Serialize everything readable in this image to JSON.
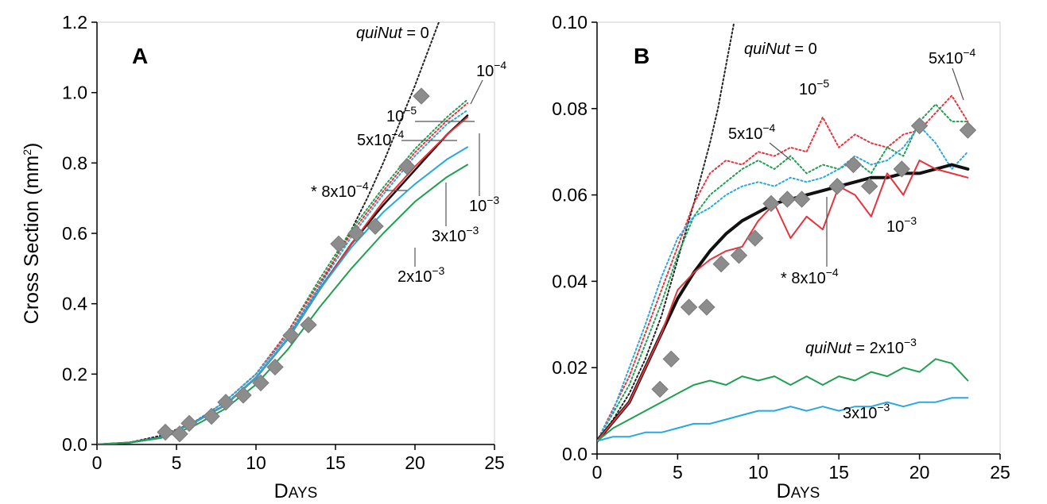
{
  "chart_data": [
    {
      "type": "line",
      "panel_label": "A",
      "xlabel": "Days",
      "ylabel": "Cross Section (mm2)",
      "xlim": [
        0,
        25
      ],
      "ylim": [
        0,
        1.2
      ],
      "xticks": [
        "0",
        "5",
        "10",
        "15",
        "20",
        "25"
      ],
      "yticks": [
        "0.0",
        "0.2",
        "0.4",
        "0.6",
        "0.8",
        "1.0",
        "1.2"
      ],
      "grid": false,
      "series": [
        {
          "name": "quiNut = 0",
          "color": "#222222",
          "style": "dotted",
          "x": [
            0,
            2,
            4,
            6,
            8,
            10,
            12,
            14,
            16,
            17,
            18,
            19,
            20,
            20.5,
            21,
            21.5,
            22
          ],
          "y": [
            0.0,
            0.005,
            0.025,
            0.06,
            0.12,
            0.2,
            0.31,
            0.45,
            0.61,
            0.7,
            0.8,
            0.91,
            1.02,
            1.08,
            1.14,
            1.2,
            1.26
          ]
        },
        {
          "name": "10-4",
          "color": "#1fa050",
          "style": "dotted",
          "x": [
            0,
            2,
            4,
            6,
            8,
            10,
            12,
            14,
            16,
            18,
            20,
            22,
            23.3
          ],
          "y": [
            0.0,
            0.005,
            0.02,
            0.06,
            0.12,
            0.2,
            0.32,
            0.47,
            0.61,
            0.73,
            0.84,
            0.93,
            0.98
          ]
        },
        {
          "name": "10-5",
          "color": "#e8323c",
          "style": "dotted",
          "x": [
            0,
            2,
            4,
            6,
            8,
            10,
            12,
            14,
            16,
            18,
            20,
            22,
            23.3
          ],
          "y": [
            0.0,
            0.005,
            0.02,
            0.06,
            0.12,
            0.2,
            0.32,
            0.46,
            0.6,
            0.72,
            0.83,
            0.92,
            0.97
          ]
        },
        {
          "name": "5x10-4",
          "color": "#29a8e0",
          "style": "dotted",
          "x": [
            0,
            2,
            4,
            6,
            8,
            10,
            12,
            14,
            16,
            18,
            20,
            22,
            23.3
          ],
          "y": [
            0.0,
            0.005,
            0.02,
            0.06,
            0.12,
            0.2,
            0.31,
            0.45,
            0.59,
            0.71,
            0.82,
            0.91,
            0.95
          ]
        },
        {
          "name": "8x10-4",
          "color": "#111111",
          "style": "solid",
          "x": [
            0,
            2,
            4,
            6,
            8,
            10,
            12,
            14,
            16,
            18,
            20,
            22,
            23.3
          ],
          "y": [
            0.0,
            0.005,
            0.02,
            0.06,
            0.11,
            0.19,
            0.3,
            0.44,
            0.57,
            0.68,
            0.78,
            0.88,
            0.935
          ]
        },
        {
          "name": "10-3",
          "color": "#e8323c",
          "style": "solid",
          "x": [
            0,
            2,
            4,
            6,
            8,
            10,
            12,
            14,
            16,
            18,
            20,
            22,
            23.3
          ],
          "y": [
            0.0,
            0.005,
            0.02,
            0.06,
            0.11,
            0.19,
            0.3,
            0.44,
            0.57,
            0.69,
            0.79,
            0.88,
            0.93
          ]
        },
        {
          "name": "3x10-3",
          "color": "#29a8e0",
          "style": "solid",
          "x": [
            0,
            2,
            4,
            6,
            8,
            10,
            12,
            14,
            16,
            18,
            20,
            22,
            23.3
          ],
          "y": [
            0.0,
            0.005,
            0.02,
            0.06,
            0.11,
            0.19,
            0.3,
            0.44,
            0.56,
            0.66,
            0.74,
            0.81,
            0.845
          ]
        },
        {
          "name": "2x10-3",
          "color": "#1fa050",
          "style": "solid",
          "x": [
            0,
            2,
            4,
            6,
            8,
            10,
            12,
            14,
            16,
            18,
            20,
            22,
            23.3
          ],
          "y": [
            0.0,
            0.005,
            0.018,
            0.05,
            0.1,
            0.17,
            0.27,
            0.39,
            0.5,
            0.6,
            0.69,
            0.76,
            0.795
          ]
        }
      ],
      "markers": {
        "shape": "diamond",
        "color": "#8c8c8c",
        "x": [
          4.3,
          5.2,
          5.8,
          7.2,
          8.1,
          9.2,
          10.3,
          11.2,
          12.2,
          13.3,
          15.2,
          16.3,
          17.5,
          19.5,
          20.4
        ],
        "y": [
          0.035,
          0.03,
          0.06,
          0.08,
          0.12,
          0.14,
          0.175,
          0.22,
          0.31,
          0.34,
          0.57,
          0.6,
          0.62,
          0.79,
          0.99
        ]
      },
      "annotations": [
        {
          "text": "quiNut = 0",
          "italic_part": "quiNut"
        },
        {
          "text": "10-4"
        },
        {
          "text": "10-5"
        },
        {
          "text": "5x10-4"
        },
        {
          "text": "* 8x10-4"
        },
        {
          "text": "10-3"
        },
        {
          "text": "3x10-3"
        },
        {
          "text": "2x10-3"
        }
      ]
    },
    {
      "type": "line",
      "panel_label": "B",
      "xlabel": "Days",
      "ylabel": "",
      "xlim": [
        0,
        25
      ],
      "ylim": [
        0,
        0.1
      ],
      "xticks": [
        "0",
        "5",
        "10",
        "15",
        "20",
        "25"
      ],
      "yticks": [
        "0.0",
        "0.02",
        "0.04",
        "0.06",
        "0.08",
        "0.10"
      ],
      "grid": false,
      "series": [
        {
          "name": "quiNut = 0",
          "color": "#222222",
          "style": "dotted",
          "x": [
            0,
            1,
            2,
            3,
            4,
            5,
            6,
            7,
            7.5,
            8,
            8.5
          ],
          "y": [
            0.003,
            0.008,
            0.014,
            0.022,
            0.032,
            0.045,
            0.058,
            0.072,
            0.08,
            0.09,
            0.1
          ]
        },
        {
          "name": "10-5",
          "color": "#e8323c",
          "style": "dotted",
          "x": [
            0,
            2,
            4,
            5,
            6,
            7,
            8,
            9,
            10,
            11,
            12,
            13,
            14,
            15,
            16,
            17,
            18,
            19,
            20,
            21,
            22,
            23
          ],
          "y": [
            0.003,
            0.018,
            0.038,
            0.048,
            0.058,
            0.065,
            0.068,
            0.067,
            0.07,
            0.069,
            0.071,
            0.07,
            0.078,
            0.071,
            0.074,
            0.072,
            0.071,
            0.074,
            0.075,
            0.079,
            0.083,
            0.077
          ]
        },
        {
          "name": "5x10-4",
          "color": "#1fa050",
          "style": "dotted",
          "x": [
            0,
            2,
            4,
            5,
            6,
            7,
            8,
            9,
            10,
            11,
            12,
            13,
            14,
            15,
            16,
            17,
            18,
            19,
            20,
            21,
            22,
            23
          ],
          "y": [
            0.003,
            0.016,
            0.035,
            0.046,
            0.055,
            0.06,
            0.063,
            0.066,
            0.068,
            0.066,
            0.069,
            0.065,
            0.067,
            0.066,
            0.068,
            0.065,
            0.071,
            0.069,
            0.077,
            0.081,
            0.077,
            0.077
          ]
        },
        {
          "name": "5x10-4",
          "color": "#29a8e0",
          "style": "dotted",
          "x": [
            0,
            1,
            2,
            3,
            4,
            5,
            6,
            7,
            8,
            9,
            10,
            11,
            12,
            13,
            14,
            15,
            16,
            17,
            18,
            19,
            20,
            21,
            22,
            23
          ],
          "y": [
            0.003,
            0.01,
            0.02,
            0.03,
            0.041,
            0.05,
            0.055,
            0.057,
            0.06,
            0.062,
            0.063,
            0.062,
            0.064,
            0.063,
            0.064,
            0.066,
            0.069,
            0.067,
            0.068,
            0.071,
            0.076,
            0.072,
            0.066,
            0.07
          ]
        },
        {
          "name": "8x10-4",
          "color": "#111111",
          "style": "solid",
          "x": [
            0,
            2,
            3,
            4,
            5,
            6,
            7,
            8,
            9,
            10,
            11,
            12,
            13,
            14,
            15,
            16,
            17,
            18,
            19,
            20,
            21,
            22,
            23
          ],
          "y": [
            0.003,
            0.012,
            0.02,
            0.028,
            0.036,
            0.042,
            0.047,
            0.051,
            0.054,
            0.056,
            0.058,
            0.059,
            0.06,
            0.061,
            0.062,
            0.063,
            0.064,
            0.064,
            0.065,
            0.065,
            0.066,
            0.067,
            0.066
          ]
        },
        {
          "name": "10-3",
          "color": "#e8323c",
          "style": "solid",
          "x": [
            0,
            2,
            3,
            4,
            5,
            6,
            7,
            8,
            9,
            10,
            11,
            12,
            13,
            14,
            15,
            16,
            17,
            18,
            19,
            20,
            21,
            22,
            23
          ],
          "y": [
            0.003,
            0.012,
            0.02,
            0.028,
            0.038,
            0.042,
            0.045,
            0.047,
            0.048,
            0.054,
            0.058,
            0.05,
            0.055,
            0.052,
            0.062,
            0.06,
            0.055,
            0.065,
            0.06,
            0.068,
            0.066,
            0.065,
            0.064
          ]
        },
        {
          "name": "quiNut = 2x10-3",
          "color": "#1fa050",
          "style": "solid",
          "x": [
            0,
            1,
            2,
            3,
            4,
            5,
            6,
            7,
            8,
            9,
            10,
            11,
            12,
            13,
            14,
            15,
            16,
            17,
            18,
            19,
            20,
            21,
            22,
            23
          ],
          "y": [
            0.003,
            0.006,
            0.008,
            0.01,
            0.012,
            0.014,
            0.016,
            0.017,
            0.016,
            0.018,
            0.017,
            0.018,
            0.016,
            0.018,
            0.016,
            0.018,
            0.017,
            0.019,
            0.018,
            0.02,
            0.019,
            0.022,
            0.021,
            0.017
          ]
        },
        {
          "name": "3x10-3",
          "color": "#29a8e0",
          "style": "solid",
          "x": [
            0,
            1,
            2,
            3,
            4,
            5,
            6,
            7,
            8,
            9,
            10,
            11,
            12,
            13,
            14,
            15,
            16,
            17,
            18,
            19,
            20,
            21,
            22,
            23
          ],
          "y": [
            0.003,
            0.004,
            0.004,
            0.005,
            0.005,
            0.006,
            0.007,
            0.007,
            0.008,
            0.009,
            0.01,
            0.01,
            0.011,
            0.01,
            0.011,
            0.01,
            0.011,
            0.011,
            0.012,
            0.011,
            0.012,
            0.012,
            0.013,
            0.013
          ]
        }
      ],
      "markers": {
        "shape": "diamond",
        "color": "#8c8c8c",
        "x": [
          3.9,
          4.6,
          5.7,
          6.8,
          7.7,
          8.8,
          9.8,
          10.8,
          11.8,
          12.7,
          14.9,
          15.9,
          16.9,
          18.9,
          20.0,
          23.0
        ],
        "y": [
          0.015,
          0.022,
          0.034,
          0.034,
          0.044,
          0.046,
          0.05,
          0.058,
          0.059,
          0.059,
          0.062,
          0.067,
          0.062,
          0.066,
          0.076,
          0.075
        ]
      },
      "annotations": [
        {
          "text": "quiNut = 0",
          "italic_part": "quiNut"
        },
        {
          "text": "10-5"
        },
        {
          "text": "5x10-4"
        },
        {
          "text": "5x10-4"
        },
        {
          "text": "* 8x10-4"
        },
        {
          "text": "10-3"
        },
        {
          "text": "quiNut = 2x10-3",
          "italic_part": "quiNut"
        },
        {
          "text": "3x10-3"
        }
      ]
    }
  ],
  "labels": {
    "a_letter": "A",
    "b_letter": "B",
    "ylabel_main": "Cross Section (mm",
    "ylabel_sup": "2",
    "ylabel_close": ")",
    "xlabel_cap": "D",
    "xlabel_rest": "AYS",
    "a_ann": {
      "q0_italic": "quiNut",
      "q0_rest": " = 0",
      "e4_base": "10",
      "e4_exp": "−4",
      "e5_base": "10",
      "e5_exp": "−5",
      "f5_base": "5x10",
      "f5_exp": "−4",
      "star_base": "* 8x10",
      "star_exp": "−4",
      "e3_base": "10",
      "e3_exp": "−3",
      "t3_base": "3x10",
      "t3_exp": "−3",
      "t2_base": "2x10",
      "t2_exp": "−3"
    },
    "b_ann": {
      "q0_italic": "quiNut",
      "q0_rest": " = 0",
      "e5_base": "10",
      "e5_exp": "−5",
      "f5_base": "5x10",
      "f5_exp": "−4",
      "f5b_base": "5x10",
      "f5b_exp": "−4",
      "star_base": "* 8x10",
      "star_exp": "−4",
      "e3_base": "10",
      "e3_exp": "−3",
      "q2_italic": "quiNut",
      "q2_rest": " = 2x10",
      "q2_exp": "−3",
      "t3_base": "3x10",
      "t3_exp": "−3"
    }
  }
}
